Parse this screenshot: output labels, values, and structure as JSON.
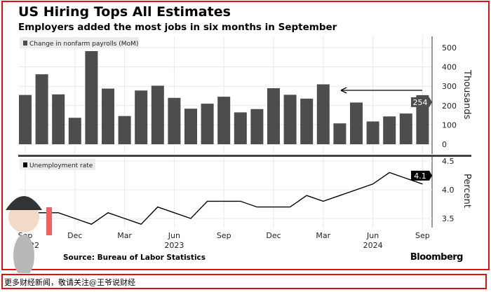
{
  "title": "US Hiring Tops All Estimates",
  "subtitle": "Employers added the most jobs in six months in September",
  "source": "Source: Bureau of Labor Statistics",
  "brand": "Bloomberg",
  "footer": "更多财经新闻，敬请关注@王爷说财经",
  "watermark_text": "王爷说财经",
  "chart_data": [
    {
      "type": "bar",
      "legend": "Change in nonfarm payrolls (MoM)",
      "ylabel": "Thousands",
      "ylim": [
        -40,
        560
      ],
      "yticks": [
        0,
        100,
        200,
        300,
        400,
        500
      ],
      "x": [
        "2022-09",
        "2022-10",
        "2022-11",
        "2022-12",
        "2023-01",
        "2023-02",
        "2023-03",
        "2023-04",
        "2023-05",
        "2023-06",
        "2023-07",
        "2023-08",
        "2023-09",
        "2023-10",
        "2023-11",
        "2023-12",
        "2024-01",
        "2024-02",
        "2024-03",
        "2024-04",
        "2024-05",
        "2024-06",
        "2024-07",
        "2024-08",
        "2024-09"
      ],
      "values": [
        255,
        362,
        258,
        137,
        482,
        288,
        146,
        278,
        303,
        240,
        184,
        210,
        246,
        165,
        182,
        290,
        256,
        236,
        310,
        108,
        216,
        118,
        144,
        159,
        254
      ],
      "last_value_label": "254",
      "annotation": "arrow from Sep 2024 back to Mar 2024",
      "color": "#4d4d4d",
      "grid": true
    },
    {
      "type": "line",
      "legend": "Unemployment rate",
      "ylabel": "Percent",
      "ylim": [
        3.3,
        4.6
      ],
      "yticks": [
        "3.5",
        "4.0",
        "4.5"
      ],
      "x": [
        "2022-09",
        "2022-10",
        "2022-11",
        "2022-12",
        "2023-01",
        "2023-02",
        "2023-03",
        "2023-04",
        "2023-05",
        "2023-06",
        "2023-07",
        "2023-08",
        "2023-09",
        "2023-10",
        "2023-11",
        "2023-12",
        "2024-01",
        "2024-02",
        "2024-03",
        "2024-04",
        "2024-05",
        "2024-06",
        "2024-07",
        "2024-08",
        "2024-09"
      ],
      "values": [
        3.6,
        3.6,
        3.6,
        3.5,
        3.4,
        3.6,
        3.5,
        3.4,
        3.7,
        3.6,
        3.5,
        3.8,
        3.8,
        3.8,
        3.7,
        3.7,
        3.7,
        3.9,
        3.8,
        3.9,
        4.0,
        4.1,
        4.3,
        4.2,
        4.1
      ],
      "last_value_label": "4.1",
      "color": "#000000",
      "grid": true
    }
  ],
  "xaxis": {
    "month_ticks": [
      "Sep",
      "Dec",
      "Mar",
      "Jun",
      "Sep",
      "Dec",
      "Mar",
      "Jun",
      "Sep"
    ],
    "year_labels": [
      "2022",
      "2023",
      "2024"
    ]
  }
}
